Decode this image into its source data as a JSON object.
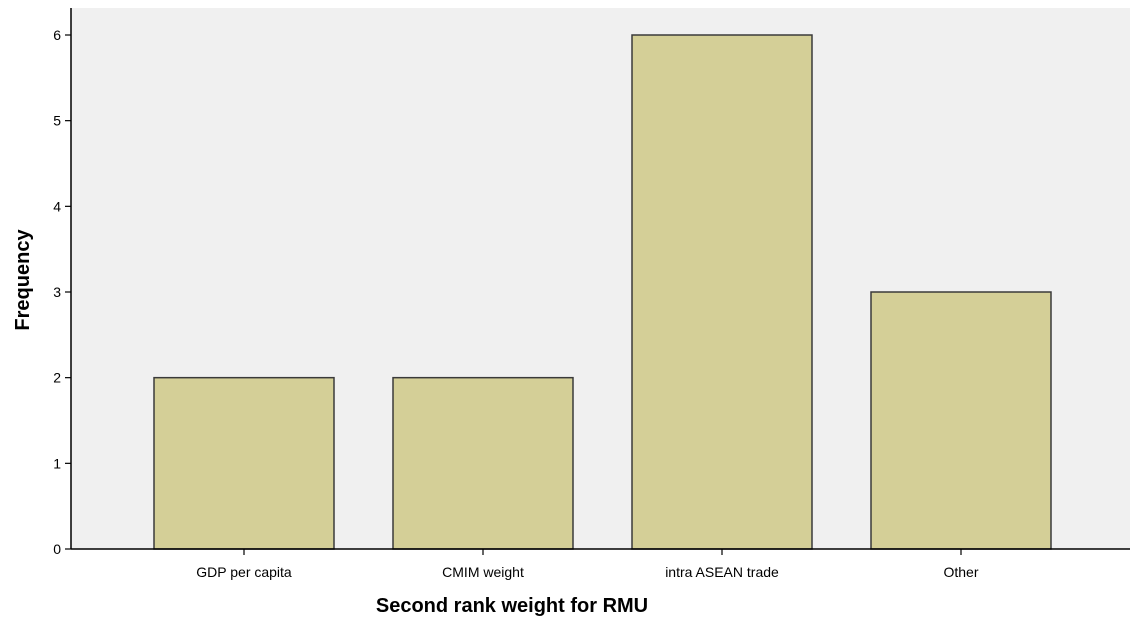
{
  "chart_data": {
    "type": "bar",
    "title": "",
    "xlabel": "Second rank weight for RMU",
    "ylabel": "Frequency",
    "categories": [
      "GDP per capita",
      "CMIM weight",
      "intra ASEAN trade",
      "Other"
    ],
    "values": [
      2,
      2,
      6,
      3
    ],
    "ylim": [
      0,
      6
    ],
    "yticks": [
      "0",
      "1",
      "2",
      "3",
      "4",
      "5",
      "6"
    ],
    "grid": false,
    "legend": "none",
    "colors": {
      "bar_fill": "#d4cf97",
      "bar_stroke": "#3a3a3a",
      "plot_background": "#f0f0f0",
      "axis": "#000000"
    }
  }
}
